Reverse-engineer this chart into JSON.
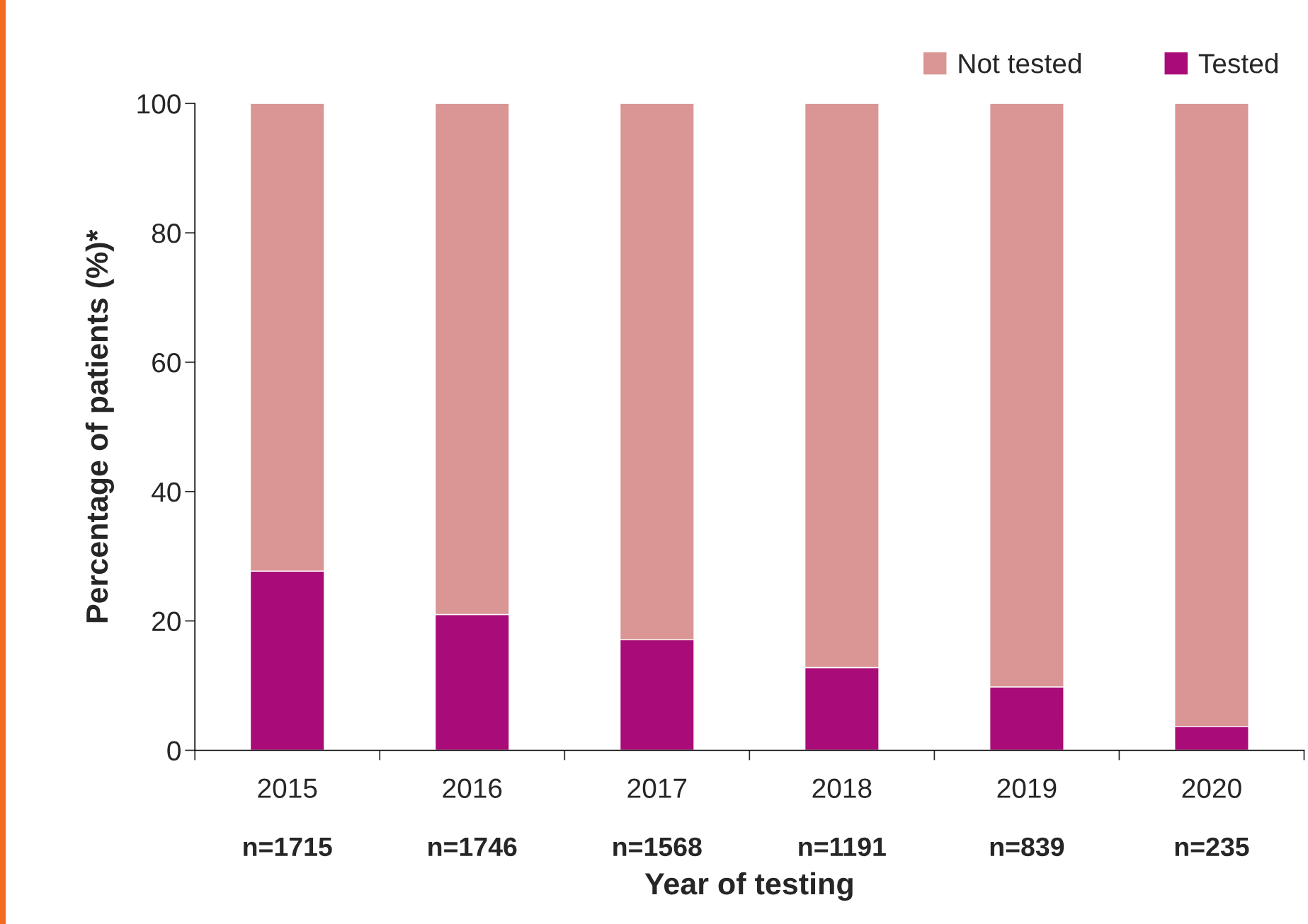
{
  "chart_data": {
    "type": "bar",
    "stacked": true,
    "xlabel": "Year of testing",
    "ylabel": "Percentage of patients (%)*",
    "categories": [
      "2015\nn=1715",
      "2016\nn=1746",
      "2017\nn=1568",
      "2018\nn=1191",
      "2019\nn=839",
      "2020\nn=235"
    ],
    "series": [
      {
        "name": "Tested",
        "color": "#a90c78",
        "values": [
          27.7,
          21.0,
          17.1,
          12.8,
          9.8,
          3.7
        ]
      },
      {
        "name": "Not tested",
        "color": "#da9595",
        "values": [
          72.3,
          79.0,
          82.9,
          87.2,
          90.2,
          96.3
        ]
      }
    ],
    "ylim": [
      0,
      100
    ],
    "yticks": [
      0,
      20,
      40,
      60,
      80,
      100
    ],
    "grid": false,
    "legend": "top right"
  }
}
